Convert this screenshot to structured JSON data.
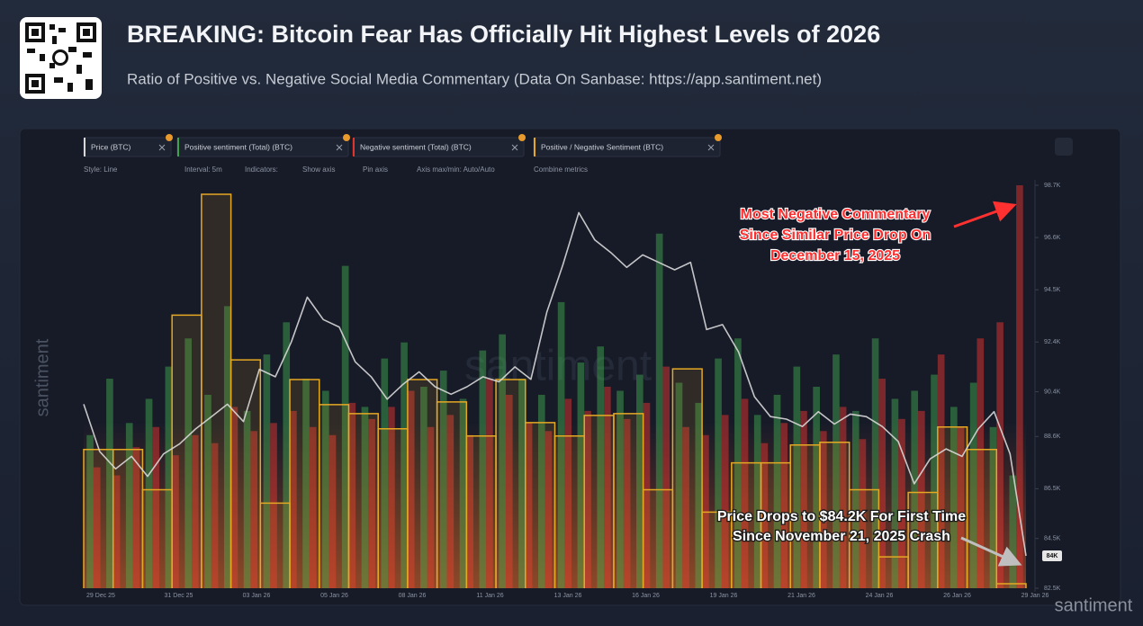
{
  "chart_data": {
    "type": "line",
    "title": "BREAKING: Bitcoin Fear Has Officially Hit Highest Levels of 2026",
    "subtitle": "Ratio of Positive vs. Negative Social Media Commentary (Data On Sanbase: https://app.santiment.net)",
    "toolbar": [
      "Style: Line",
      "Interval: 5m",
      "Indicators:",
      "Show axis",
      "Pin axis",
      "Axis max/min: Auto/Auto",
      "Combine metrics"
    ],
    "watermark": "santiment",
    "price_tag": "84K",
    "x_tick_labels": [
      "29 Dec 25",
      "31 Dec 25",
      "03 Jan 26",
      "05 Jan 26",
      "08 Jan 26",
      "11 Jan 26",
      "13 Jan 26",
      "16 Jan 26",
      "19 Jan 26",
      "21 Jan 26",
      "24 Jan 26",
      "26 Jan 26",
      "29 Jan 26"
    ],
    "ylim": [
      82500,
      98700
    ],
    "yticks": [
      {
        "value": 98700,
        "label": "98.7K"
      },
      {
        "value": 96600,
        "label": "96.6K"
      },
      {
        "value": 94500,
        "label": "94.5K"
      },
      {
        "value": 92400,
        "label": "92.4K"
      },
      {
        "value": 90400,
        "label": "90.4K"
      },
      {
        "value": 88600,
        "label": "88.6K"
      },
      {
        "value": 86500,
        "label": "86.5K"
      },
      {
        "value": 84500,
        "label": "84.5K"
      },
      {
        "value": 82500,
        "label": "82.5K"
      }
    ],
    "sentiment_lim": [
      0,
      100
    ],
    "y2lim": [
      0,
      4.5
    ],
    "series": [
      {
        "name": "Price (BTC)",
        "color": "#d8d8d8",
        "values": [
          89900,
          88000,
          87300,
          87800,
          87000,
          87900,
          88300,
          88900,
          89400,
          89900,
          89200,
          91300,
          91000,
          92400,
          94200,
          93300,
          93000,
          91600,
          91000,
          90100,
          90700,
          91200,
          90600,
          90300,
          90600,
          91000,
          90800,
          91400,
          90900,
          93600,
          95500,
          97600,
          96500,
          96000,
          95400,
          95900,
          95600,
          95300,
          95600,
          92900,
          93100,
          92000,
          90200,
          89400,
          89300,
          89000,
          89600,
          89100,
          89500,
          89400,
          89000,
          88400,
          86700,
          87700,
          88100,
          87800,
          88900,
          89600,
          87900,
          83800
        ]
      },
      {
        "name": "Positive sentiment (Total) (BTC)",
        "color": "#3fa34d",
        "axis": "sentiment",
        "values": [
          38,
          52,
          41,
          47,
          55,
          62,
          48,
          70,
          44,
          58,
          66,
          52,
          49,
          80,
          45,
          57,
          61,
          50,
          54,
          47,
          59,
          63,
          52,
          48,
          71,
          56,
          60,
          49,
          53,
          88,
          51,
          46,
          57,
          62,
          43,
          48,
          55,
          50,
          58,
          44,
          62,
          47,
          49,
          53,
          45,
          51,
          40,
          28
        ]
      },
      {
        "name": "Negative sentiment (Total) (BTC)",
        "color": "#e0342f",
        "axis": "sentiment",
        "values": [
          30,
          28,
          35,
          40,
          33,
          38,
          36,
          45,
          39,
          41,
          44,
          40,
          38,
          46,
          42,
          45,
          49,
          40,
          43,
          38,
          52,
          48,
          41,
          39,
          47,
          44,
          50,
          42,
          46,
          55,
          40,
          38,
          43,
          47,
          36,
          41,
          44,
          39,
          45,
          37,
          52,
          42,
          44,
          58,
          40,
          62,
          66,
          100
        ]
      },
      {
        "name": "Positive / Negative Sentiment (BTC)",
        "color": "#e5a823",
        "axis": "y2",
        "values": [
          1.55,
          1.55,
          1.1,
          3.05,
          4.4,
          2.55,
          0.95,
          2.33,
          2.05,
          1.95,
          1.78,
          2.33,
          2.08,
          1.7,
          2.33,
          1.85,
          1.7,
          1.93,
          1.95,
          1.1,
          2.45,
          0.85,
          1.4,
          1.4,
          1.6,
          1.63,
          1.1,
          0.35,
          1.07,
          1.8,
          1.55,
          0.05
        ]
      }
    ],
    "annotations": [
      {
        "lines": [
          "Most Negative Commentary",
          "Since Similar Price Drop On",
          "December 15, 2025"
        ]
      },
      {
        "lines": [
          "Price Drops to $84.2K For First Time",
          "Since November 21, 2025 Crash"
        ]
      }
    ]
  }
}
